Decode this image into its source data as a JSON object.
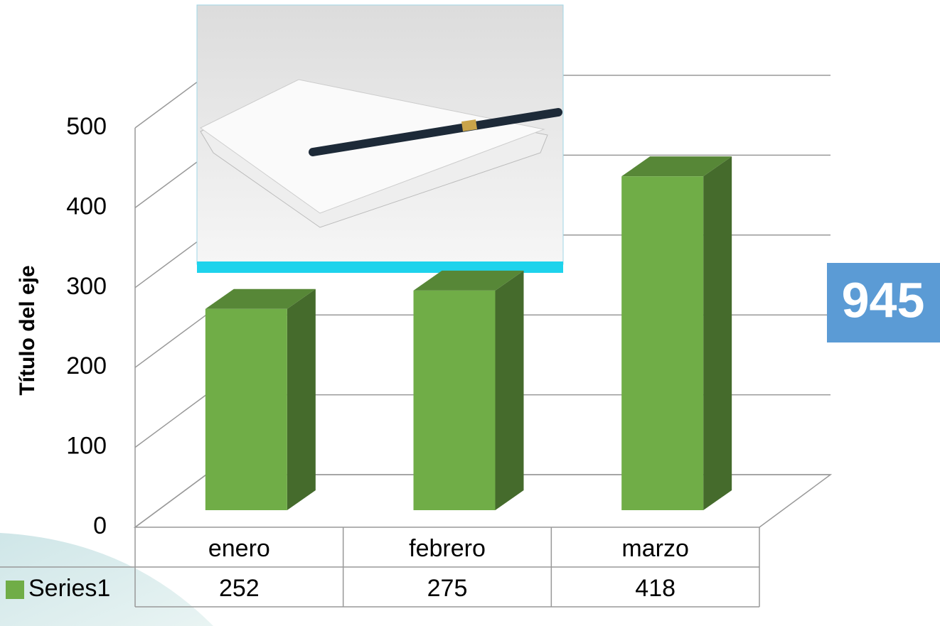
{
  "chart_data": {
    "type": "bar3d",
    "y_axis_title": "Título del eje",
    "categories": [
      "enero",
      "febrero",
      "marzo"
    ],
    "series": [
      {
        "name": "Series1",
        "color": "#70ad47",
        "values": [
          252,
          275,
          418
        ]
      }
    ],
    "ylim": [
      0,
      500
    ],
    "yticks": [
      0,
      100,
      200,
      300,
      400,
      500
    ],
    "grid": true,
    "legend": "table",
    "annotation": "945"
  }
}
